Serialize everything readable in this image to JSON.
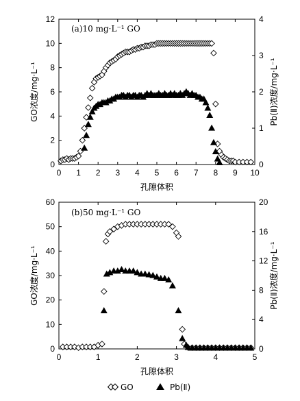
{
  "chart_data": [
    {
      "type": "scatter",
      "title": "(a)10 mg·L⁻¹ GO",
      "xlabel": "孔隙体积",
      "ylabel_left": "GO浓度/mg·L⁻¹",
      "ylabel_right": "Pb(Ⅱ)浓度/mg·L⁻¹",
      "xlim": [
        0,
        10
      ],
      "ylim_left": [
        0,
        12
      ],
      "ylim_right": [
        0,
        4
      ],
      "x_ticks": [
        "0",
        "1",
        "2",
        "3",
        "4",
        "5",
        "6",
        "7",
        "8",
        "9",
        "10"
      ],
      "y_left_ticks": [
        "0",
        "2",
        "4",
        "6",
        "8",
        "10",
        "12"
      ],
      "y_right_ticks": [
        "0",
        "1",
        "2",
        "3",
        "4"
      ],
      "series": [
        {
          "name": "GO",
          "axis": "left",
          "marker": "open-diamond",
          "points": [
            [
              0.1,
              0.3
            ],
            [
              0.2,
              0.4
            ],
            [
              0.3,
              0.4
            ],
            [
              0.4,
              0.5
            ],
            [
              0.5,
              0.4
            ],
            [
              0.6,
              0.5
            ],
            [
              0.7,
              0.5
            ],
            [
              0.8,
              0.5
            ],
            [
              0.9,
              0.6
            ],
            [
              1.0,
              0.7
            ],
            [
              1.1,
              1.1
            ],
            [
              1.2,
              2.0
            ],
            [
              1.3,
              3.0
            ],
            [
              1.4,
              3.9
            ],
            [
              1.5,
              4.7
            ],
            [
              1.6,
              5.5
            ],
            [
              1.7,
              6.3
            ],
            [
              1.8,
              6.8
            ],
            [
              1.9,
              7.1
            ],
            [
              2.0,
              7.2
            ],
            [
              2.1,
              7.3
            ],
            [
              2.2,
              7.4
            ],
            [
              2.3,
              7.7
            ],
            [
              2.4,
              8.0
            ],
            [
              2.5,
              8.2
            ],
            [
              2.6,
              8.4
            ],
            [
              2.7,
              8.5
            ],
            [
              2.8,
              8.6
            ],
            [
              2.9,
              8.7
            ],
            [
              3.0,
              8.9
            ],
            [
              3.1,
              9.0
            ],
            [
              3.2,
              9.1
            ],
            [
              3.3,
              9.2
            ],
            [
              3.4,
              9.3
            ],
            [
              3.5,
              9.3
            ],
            [
              3.6,
              9.3
            ],
            [
              3.7,
              9.4
            ],
            [
              3.8,
              9.5
            ],
            [
              3.9,
              9.5
            ],
            [
              4.0,
              9.6
            ],
            [
              4.1,
              9.6
            ],
            [
              4.2,
              9.7
            ],
            [
              4.3,
              9.7
            ],
            [
              4.4,
              9.8
            ],
            [
              4.5,
              9.8
            ],
            [
              4.6,
              9.8
            ],
            [
              4.7,
              9.9
            ],
            [
              4.8,
              9.9
            ],
            [
              4.9,
              9.9
            ],
            [
              5.0,
              10.0
            ],
            [
              5.1,
              10.0
            ],
            [
              5.2,
              10.0
            ],
            [
              5.3,
              10.0
            ],
            [
              5.4,
              10.0
            ],
            [
              5.5,
              10.0
            ],
            [
              5.6,
              10.0
            ],
            [
              5.7,
              10.0
            ],
            [
              5.8,
              10.0
            ],
            [
              5.9,
              10.0
            ],
            [
              6.0,
              10.0
            ],
            [
              6.1,
              10.0
            ],
            [
              6.2,
              10.0
            ],
            [
              6.3,
              10.0
            ],
            [
              6.4,
              10.0
            ],
            [
              6.5,
              10.0
            ],
            [
              6.6,
              10.0
            ],
            [
              6.7,
              10.0
            ],
            [
              6.8,
              10.0
            ],
            [
              6.9,
              10.0
            ],
            [
              7.0,
              10.0
            ],
            [
              7.1,
              10.0
            ],
            [
              7.2,
              10.0
            ],
            [
              7.3,
              10.0
            ],
            [
              7.4,
              10.0
            ],
            [
              7.5,
              10.0
            ],
            [
              7.6,
              10.0
            ],
            [
              7.7,
              10.0
            ],
            [
              7.8,
              10.0
            ],
            [
              7.9,
              9.2
            ],
            [
              8.0,
              5.0
            ],
            [
              8.1,
              1.7
            ],
            [
              8.2,
              1.1
            ],
            [
              8.3,
              0.8
            ],
            [
              8.4,
              0.6
            ],
            [
              8.5,
              0.5
            ],
            [
              8.6,
              0.4
            ],
            [
              8.7,
              0.3
            ],
            [
              8.8,
              0.3
            ],
            [
              8.9,
              0.3
            ],
            [
              9.0,
              0.2
            ],
            [
              9.2,
              0.2
            ],
            [
              9.4,
              0.2
            ],
            [
              9.6,
              0.2
            ],
            [
              9.8,
              0.2
            ]
          ]
        },
        {
          "name": "Pb(Ⅱ)",
          "axis": "right",
          "marker": "filled-triangle",
          "points": [
            [
              1.3,
              0.45
            ],
            [
              1.4,
              0.8
            ],
            [
              1.5,
              1.1
            ],
            [
              1.6,
              1.3
            ],
            [
              1.7,
              1.45
            ],
            [
              1.8,
              1.55
            ],
            [
              1.9,
              1.6
            ],
            [
              2.0,
              1.65
            ],
            [
              2.1,
              1.65
            ],
            [
              2.2,
              1.7
            ],
            [
              2.3,
              1.7
            ],
            [
              2.4,
              1.7
            ],
            [
              2.5,
              1.75
            ],
            [
              2.6,
              1.75
            ],
            [
              2.7,
              1.8
            ],
            [
              2.8,
              1.8
            ],
            [
              2.9,
              1.85
            ],
            [
              3.0,
              1.85
            ],
            [
              3.1,
              1.85
            ],
            [
              3.2,
              1.9
            ],
            [
              3.3,
              1.9
            ],
            [
              3.4,
              1.85
            ],
            [
              3.5,
              1.9
            ],
            [
              3.6,
              1.9
            ],
            [
              3.7,
              1.85
            ],
            [
              3.8,
              1.9
            ],
            [
              3.9,
              1.9
            ],
            [
              4.0,
              1.85
            ],
            [
              4.1,
              1.9
            ],
            [
              4.2,
              1.9
            ],
            [
              4.3,
              1.85
            ],
            [
              4.4,
              1.9
            ],
            [
              4.5,
              1.95
            ],
            [
              4.6,
              1.9
            ],
            [
              4.7,
              1.95
            ],
            [
              4.8,
              1.9
            ],
            [
              4.9,
              1.9
            ],
            [
              5.0,
              1.9
            ],
            [
              5.1,
              1.95
            ],
            [
              5.2,
              1.9
            ],
            [
              5.3,
              1.9
            ],
            [
              5.4,
              1.95
            ],
            [
              5.5,
              1.9
            ],
            [
              5.6,
              1.9
            ],
            [
              5.7,
              1.95
            ],
            [
              5.8,
              1.9
            ],
            [
              5.9,
              1.95
            ],
            [
              6.0,
              1.9
            ],
            [
              6.1,
              1.9
            ],
            [
              6.2,
              1.95
            ],
            [
              6.3,
              1.9
            ],
            [
              6.4,
              1.95
            ],
            [
              6.5,
              2.0
            ],
            [
              6.6,
              1.95
            ],
            [
              6.7,
              1.9
            ],
            [
              6.8,
              1.95
            ],
            [
              6.9,
              1.9
            ],
            [
              7.0,
              1.9
            ],
            [
              7.1,
              1.85
            ],
            [
              7.2,
              1.85
            ],
            [
              7.3,
              1.8
            ],
            [
              7.4,
              1.8
            ],
            [
              7.5,
              1.7
            ],
            [
              7.6,
              1.55
            ],
            [
              7.7,
              1.35
            ],
            [
              7.8,
              1.0
            ],
            [
              7.9,
              0.6
            ],
            [
              8.0,
              0.35
            ],
            [
              8.1,
              0.15
            ],
            [
              8.2,
              0.05
            ]
          ]
        }
      ]
    },
    {
      "type": "scatter",
      "title": "(b)50 mg·L⁻¹ GO",
      "xlabel": "孔隙体积",
      "ylabel_left": "GO浓度/mg·L⁻¹",
      "ylabel_right": "Pb(Ⅱ)浓度/mg·L⁻¹",
      "xlim": [
        0,
        5
      ],
      "ylim_left": [
        0,
        60
      ],
      "ylim_right": [
        0,
        20
      ],
      "x_ticks": [
        "0",
        "1",
        "2",
        "3",
        "4",
        "5"
      ],
      "y_left_ticks": [
        "0",
        "10",
        "20",
        "30",
        "40",
        "50",
        "60"
      ],
      "y_right_ticks": [
        "0",
        "4",
        "8",
        "12",
        "16",
        "20"
      ],
      "series": [
        {
          "name": "GO",
          "axis": "left",
          "marker": "open-diamond",
          "points": [
            [
              0.1,
              0.8
            ],
            [
              0.2,
              0.8
            ],
            [
              0.3,
              0.8
            ],
            [
              0.4,
              0.8
            ],
            [
              0.5,
              0.5
            ],
            [
              0.6,
              0.8
            ],
            [
              0.7,
              0.8
            ],
            [
              0.8,
              0.8
            ],
            [
              0.9,
              0.8
            ],
            [
              1.0,
              1.5
            ],
            [
              1.1,
              2.0
            ],
            [
              1.15,
              23.5
            ],
            [
              1.2,
              44.0
            ],
            [
              1.25,
              47.0
            ],
            [
              1.3,
              48.0
            ],
            [
              1.4,
              49.0
            ],
            [
              1.5,
              50.0
            ],
            [
              1.6,
              50.5
            ],
            [
              1.7,
              51.0
            ],
            [
              1.8,
              51.0
            ],
            [
              1.9,
              51.0
            ],
            [
              2.0,
              51.0
            ],
            [
              2.1,
              51.0
            ],
            [
              2.2,
              51.0
            ],
            [
              2.3,
              51.0
            ],
            [
              2.4,
              51.0
            ],
            [
              2.5,
              51.0
            ],
            [
              2.6,
              51.0
            ],
            [
              2.7,
              51.0
            ],
            [
              2.8,
              51.0
            ],
            [
              2.9,
              50.0
            ],
            [
              3.0,
              47.5
            ],
            [
              3.05,
              46.0
            ],
            [
              3.15,
              8.0
            ],
            [
              3.2,
              2.0
            ],
            [
              3.3,
              0.5
            ],
            [
              3.4,
              0.5
            ],
            [
              3.5,
              0.5
            ],
            [
              3.6,
              0.5
            ],
            [
              3.7,
              0.5
            ],
            [
              3.8,
              0.5
            ],
            [
              3.9,
              0.5
            ],
            [
              4.0,
              0.5
            ],
            [
              4.1,
              0.5
            ],
            [
              4.2,
              0.5
            ],
            [
              4.3,
              0.5
            ],
            [
              4.4,
              0.5
            ],
            [
              4.5,
              0.5
            ],
            [
              4.6,
              0.5
            ],
            [
              4.7,
              0.5
            ],
            [
              4.8,
              0.5
            ],
            [
              4.9,
              0.5
            ]
          ]
        },
        {
          "name": "Pb(Ⅱ)",
          "axis": "right",
          "marker": "filled-triangle",
          "points": [
            [
              1.15,
              5.2
            ],
            [
              1.22,
              10.2
            ],
            [
              1.3,
              10.4
            ],
            [
              1.4,
              10.6
            ],
            [
              1.5,
              10.6
            ],
            [
              1.6,
              10.8
            ],
            [
              1.7,
              10.6
            ],
            [
              1.8,
              10.6
            ],
            [
              1.9,
              10.6
            ],
            [
              2.0,
              10.4
            ],
            [
              2.1,
              10.2
            ],
            [
              2.2,
              10.2
            ],
            [
              2.3,
              10.1
            ],
            [
              2.4,
              10.0
            ],
            [
              2.5,
              9.8
            ],
            [
              2.6,
              9.6
            ],
            [
              2.7,
              9.6
            ],
            [
              2.8,
              9.4
            ],
            [
              2.9,
              8.6
            ],
            [
              3.05,
              5.2
            ],
            [
              3.15,
              1.4
            ],
            [
              3.25,
              0.5
            ],
            [
              3.3,
              0.2
            ],
            [
              3.4,
              0.1
            ],
            [
              3.5,
              0.1
            ],
            [
              3.6,
              0.1
            ],
            [
              3.7,
              0.1
            ],
            [
              3.8,
              0.1
            ],
            [
              3.9,
              0.1
            ],
            [
              4.0,
              0.1
            ],
            [
              4.1,
              0.1
            ],
            [
              4.2,
              0.1
            ],
            [
              4.3,
              0.1
            ],
            [
              4.4,
              0.1
            ],
            [
              4.5,
              0.1
            ],
            [
              4.6,
              0.1
            ],
            [
              4.7,
              0.1
            ],
            [
              4.8,
              0.1
            ],
            [
              4.9,
              0.1
            ]
          ]
        }
      ]
    }
  ],
  "legend": {
    "go_label": "GO",
    "pb_label": "Pb(Ⅱ)"
  },
  "colors": {
    "axis": "#000000",
    "marker_fill": "#000000",
    "marker_open": "#ffffff"
  }
}
